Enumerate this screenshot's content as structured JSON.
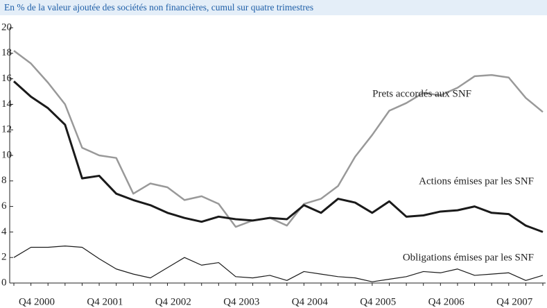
{
  "chart_data": {
    "type": "line",
    "subtitle": "En % de la valeur ajoutée des sociétés non financières, cumul sur quatre trimestres",
    "categories": [
      "Q4 2000",
      null,
      null,
      null,
      "Q4 2001",
      null,
      null,
      null,
      "Q4 2002",
      null,
      null,
      null,
      "Q4 2003",
      null,
      null,
      null,
      "Q4 2004",
      null,
      null,
      null,
      "Q4 2005",
      null,
      null,
      null,
      "Q4 2006",
      null,
      null,
      null,
      "Q4 2007",
      null,
      null,
      null
    ],
    "series": [
      {
        "name": "Prets accordés aux SNF",
        "color": "#999999",
        "values": [
          18.2,
          17.2,
          15.7,
          14.0,
          10.6,
          10.0,
          9.8,
          7.0,
          7.8,
          7.5,
          6.5,
          6.8,
          6.2,
          4.4,
          4.9,
          5.1,
          4.5,
          6.2,
          6.6,
          7.6,
          9.9,
          11.6,
          13.5,
          14.1,
          14.9,
          14.7,
          15.3,
          16.2,
          16.3,
          16.1,
          14.5,
          13.4
        ]
      },
      {
        "name": "Actions émises par les SNF",
        "color": "#1a1a1a",
        "values": [
          15.8,
          14.6,
          13.7,
          12.4,
          8.2,
          8.4,
          7.0,
          6.5,
          6.1,
          5.5,
          5.1,
          4.8,
          5.2,
          5.0,
          4.9,
          5.1,
          5.0,
          6.1,
          5.5,
          6.6,
          6.3,
          5.5,
          6.4,
          5.2,
          5.3,
          5.6,
          5.7,
          6.0,
          5.5,
          5.4,
          4.5,
          4.0
        ]
      },
      {
        "name": "Obligations émises par les SNF",
        "color": "#1a1a1a",
        "values": [
          2.0,
          2.8,
          2.8,
          2.9,
          2.8,
          1.9,
          1.1,
          0.7,
          0.4,
          1.2,
          2.0,
          1.4,
          1.6,
          0.5,
          0.4,
          0.6,
          0.2,
          0.9,
          0.7,
          0.5,
          0.4,
          0.1,
          0.3,
          0.5,
          0.9,
          0.8,
          1.1,
          0.6,
          0.7,
          0.8,
          0.2,
          0.6
        ]
      }
    ],
    "ylim": [
      0,
      20
    ],
    "yticks": [
      0,
      2,
      4,
      6,
      8,
      10,
      12,
      14,
      16,
      18,
      20
    ]
  }
}
